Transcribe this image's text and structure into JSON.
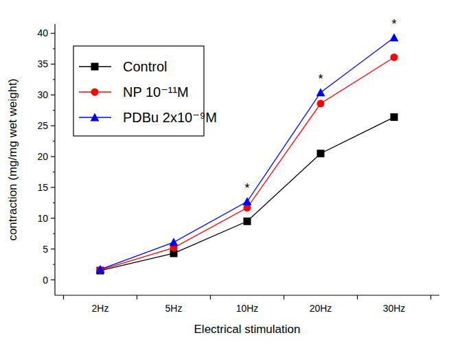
{
  "chart_data": {
    "type": "line",
    "x_label": "Electrical stimulation",
    "y_label": "contraction (mg/mg wet weight)",
    "categories": [
      "2Hz",
      "5Hz",
      "10Hz",
      "20Hz",
      "30Hz"
    ],
    "series": [
      {
        "name": "Control",
        "color": "#000000",
        "marker": "square",
        "values": [
          1.5,
          4.3,
          9.5,
          20.5,
          26.4
        ]
      },
      {
        "name": "NP 10⁻¹¹M",
        "color": "#ff0000",
        "marker": "circle",
        "values": [
          1.6,
          5.2,
          11.7,
          28.6,
          36.1
        ]
      },
      {
        "name": "PDBu 2x10⁻⁹M",
        "color": "#0000ff",
        "marker": "triangle",
        "values": [
          1.7,
          6.1,
          12.7,
          30.4,
          39.3
        ]
      }
    ],
    "annotations": [
      {
        "text": "*",
        "x": "10Hz"
      },
      {
        "text": "*",
        "x": "20Hz"
      },
      {
        "text": "*",
        "x": "30Hz"
      }
    ],
    "ylim": [
      -2.5,
      41.5
    ],
    "yticks": [
      0,
      5,
      10,
      15,
      20,
      25,
      30,
      35,
      40
    ],
    "grid": false,
    "legend": "upper left"
  }
}
